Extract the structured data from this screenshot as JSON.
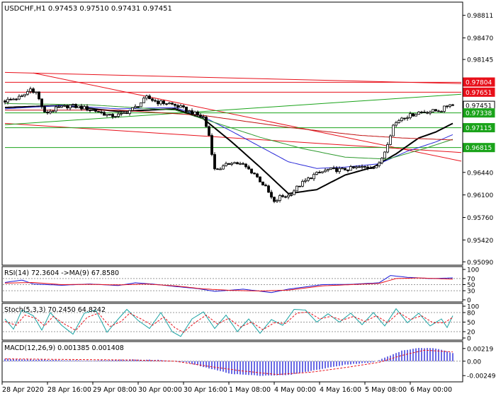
{
  "chart_data": [
    {
      "type": "candlestick",
      "panel": "main",
      "title": "USDCHF,H1  0.97453 0.97510 0.97431 0.97451",
      "symbol": "USDCHF",
      "timeframe": "H1",
      "ohlc_label": {
        "open": 0.97453,
        "high": 0.9751,
        "low": 0.97431,
        "close": 0.97451
      },
      "ylim": [
        0.9505,
        0.99
      ],
      "y_ticks": [
        0.98811,
        0.9847,
        0.98145,
        0.97804,
        0.97651,
        0.97451,
        0.97338,
        0.97115,
        0.96815,
        0.9644,
        0.961,
        0.9576,
        0.9542,
        0.9509
      ],
      "highlighted_levels": [
        {
          "value": 0.97804,
          "label": "0.97804",
          "color": "#e8101a"
        },
        {
          "value": 0.97651,
          "label": "0.97651",
          "color": "#e8101a"
        },
        {
          "value": 0.97451,
          "label": "0.97451",
          "color": "#ffffff"
        },
        {
          "value": 0.97338,
          "label": "0.97338",
          "color": "#1aa31a"
        },
        {
          "value": 0.97115,
          "label": "0.97115",
          "color": "#1aa31a"
        },
        {
          "value": 0.96815,
          "label": "0.96815",
          "color": "#1aa31a"
        }
      ],
      "x_labels": [
        "28 Apr 2020",
        "28 Apr 16:00",
        "29 Apr 08:00",
        "30 Apr 00:00",
        "30 Apr 16:00",
        "1 May 08:00",
        "4 May 00:00",
        "4 May 16:00",
        "5 May 08:00",
        "6 May 00:00"
      ],
      "close_anchors": [
        [
          0,
          0.9752
        ],
        [
          6,
          0.9758
        ],
        [
          9,
          0.977
        ],
        [
          11,
          0.9765
        ],
        [
          14,
          0.9733
        ],
        [
          18,
          0.974
        ],
        [
          23,
          0.9745
        ],
        [
          28,
          0.9741
        ],
        [
          33,
          0.9736
        ],
        [
          37,
          0.9729
        ],
        [
          41,
          0.9731
        ],
        [
          46,
          0.9742
        ],
        [
          50,
          0.9757
        ],
        [
          54,
          0.975
        ],
        [
          58,
          0.9748
        ],
        [
          62,
          0.9742
        ],
        [
          66,
          0.9734
        ],
        [
          70,
          0.9727
        ],
        [
          72,
          0.97
        ],
        [
          74,
          0.9648
        ],
        [
          77,
          0.9652
        ],
        [
          80,
          0.966
        ],
        [
          84,
          0.9655
        ],
        [
          88,
          0.9642
        ],
        [
          92,
          0.9621
        ],
        [
          95,
          0.9598
        ],
        [
          97,
          0.9607
        ],
        [
          100,
          0.9609
        ],
        [
          104,
          0.9625
        ],
        [
          109,
          0.964
        ],
        [
          114,
          0.9648
        ],
        [
          119,
          0.9648
        ],
        [
          124,
          0.9651
        ],
        [
          129,
          0.9652
        ],
        [
          132,
          0.9656
        ],
        [
          134,
          0.9676
        ],
        [
          137,
          0.9715
        ],
        [
          140,
          0.9727
        ],
        [
          143,
          0.973
        ],
        [
          146,
          0.9735
        ],
        [
          150,
          0.9736
        ],
        [
          154,
          0.9738
        ],
        [
          157,
          0.9748
        ],
        [
          158,
          0.9745
        ]
      ],
      "trendlines": [
        {
          "color": "#e8101a",
          "from": [
            0,
            0.978
          ],
          "to": [
            158,
            0.978
          ]
        },
        {
          "color": "#e8101a",
          "from": [
            0,
            0.97651
          ],
          "to": [
            158,
            0.97651
          ]
        },
        {
          "color": "#e8101a",
          "from": [
            0,
            0.9795
          ],
          "to": [
            158,
            0.9778
          ]
        },
        {
          "color": "#e8101a",
          "from": [
            10,
            0.9794
          ],
          "to": [
            158,
            0.9661
          ]
        },
        {
          "color": "#e8101a",
          "from": [
            0,
            0.9718
          ],
          "to": [
            158,
            0.9674
          ]
        },
        {
          "color": "#1aa31a",
          "from": [
            0,
            0.97338
          ],
          "to": [
            158,
            0.97338
          ]
        },
        {
          "color": "#1aa31a",
          "from": [
            0,
            0.97115
          ],
          "to": [
            158,
            0.97115
          ]
        },
        {
          "color": "#1aa31a",
          "from": [
            0,
            0.96815
          ],
          "to": [
            158,
            0.96815
          ]
        },
        {
          "color": "#1aa31a",
          "from": [
            0,
            0.9716
          ],
          "to": [
            158,
            0.9762
          ]
        }
      ],
      "moving_averages": [
        {
          "color": "#000000",
          "anchors": [
            [
              0,
              0.9742
            ],
            [
              20,
              0.9745
            ],
            [
              40,
              0.9736
            ],
            [
              60,
              0.974
            ],
            [
              70,
              0.9725
            ],
            [
              80,
              0.969
            ],
            [
              90,
              0.9652
            ],
            [
              100,
              0.9612
            ],
            [
              110,
              0.9618
            ],
            [
              120,
              0.964
            ],
            [
              130,
              0.9652
            ],
            [
              138,
              0.9672
            ],
            [
              146,
              0.9696
            ],
            [
              152,
              0.9705
            ],
            [
              158,
              0.9718
            ]
          ]
        },
        {
          "color": "#2b2bd8",
          "anchors": [
            [
              0,
              0.974
            ],
            [
              20,
              0.9745
            ],
            [
              40,
              0.974
            ],
            [
              60,
              0.9742
            ],
            [
              70,
              0.9728
            ],
            [
              80,
              0.9706
            ],
            [
              90,
              0.9683
            ],
            [
              100,
              0.966
            ],
            [
              110,
              0.965
            ],
            [
              120,
              0.9652
            ],
            [
              132,
              0.9657
            ],
            [
              142,
              0.9676
            ],
            [
              152,
              0.969
            ],
            [
              158,
              0.9701
            ]
          ]
        },
        {
          "color": "#2e9a2e",
          "anchors": [
            [
              0,
              0.9748
            ],
            [
              30,
              0.9746
            ],
            [
              60,
              0.9738
            ],
            [
              75,
              0.9718
            ],
            [
              90,
              0.9697
            ],
            [
              105,
              0.968
            ],
            [
              120,
              0.9667
            ],
            [
              135,
              0.9664
            ],
            [
              148,
              0.968
            ],
            [
              158,
              0.9694
            ]
          ]
        },
        {
          "color": "#c01010",
          "anchors": [
            [
              0,
              0.9738
            ],
            [
              40,
              0.9738
            ],
            [
              70,
              0.973
            ],
            [
              100,
              0.9712
            ],
            [
              125,
              0.97
            ],
            [
              140,
              0.9696
            ],
            [
              158,
              0.9693
            ]
          ]
        }
      ]
    },
    {
      "type": "line",
      "panel": "rsi",
      "label": "RSI(14) 72.3604  ->MA(9) 67.8580",
      "ylim": [
        0,
        100
      ],
      "y_ticks": [
        100,
        70,
        50,
        30,
        0
      ],
      "series": [
        {
          "color": "#1a1ad8",
          "anchors": [
            [
              0,
              57
            ],
            [
              6,
              65
            ],
            [
              10,
              52
            ],
            [
              20,
              48
            ],
            [
              30,
              52
            ],
            [
              40,
              47
            ],
            [
              46,
              56
            ],
            [
              52,
              52
            ],
            [
              60,
              44
            ],
            [
              68,
              37
            ],
            [
              74,
              28
            ],
            [
              84,
              35
            ],
            [
              94,
              24
            ],
            [
              100,
              35
            ],
            [
              112,
              50
            ],
            [
              122,
              51
            ],
            [
              132,
              56
            ],
            [
              136,
              80
            ],
            [
              142,
              74
            ],
            [
              150,
              70
            ],
            [
              158,
              72
            ]
          ]
        },
        {
          "color": "#e8101a",
          "anchors": [
            [
              0,
              55
            ],
            [
              10,
              57
            ],
            [
              20,
              50
            ],
            [
              30,
              51
            ],
            [
              40,
              49
            ],
            [
              50,
              52
            ],
            [
              60,
              46
            ],
            [
              70,
              36
            ],
            [
              80,
              31
            ],
            [
              90,
              29
            ],
            [
              100,
              32
            ],
            [
              112,
              46
            ],
            [
              122,
              50
            ],
            [
              132,
              54
            ],
            [
              138,
              70
            ],
            [
              146,
              72
            ],
            [
              158,
              68
            ]
          ]
        }
      ]
    },
    {
      "type": "line",
      "panel": "stoch",
      "label": "Stoch(5,3,3) 70.2450 64.8242",
      "ylim": [
        0,
        100
      ],
      "y_ticks": [
        100,
        80,
        50,
        20,
        0
      ],
      "series": [
        {
          "color": "#1aa3a3",
          "anchors": [
            [
              0,
              60
            ],
            [
              3,
              28
            ],
            [
              6,
              88
            ],
            [
              10,
              70
            ],
            [
              13,
              25
            ],
            [
              16,
              80
            ],
            [
              20,
              40
            ],
            [
              24,
              12
            ],
            [
              28,
              78
            ],
            [
              32,
              88
            ],
            [
              36,
              18
            ],
            [
              40,
              60
            ],
            [
              43,
              90
            ],
            [
              47,
              55
            ],
            [
              51,
              30
            ],
            [
              55,
              80
            ],
            [
              59,
              20
            ],
            [
              62,
              5
            ],
            [
              66,
              60
            ],
            [
              70,
              82
            ],
            [
              74,
              30
            ],
            [
              78,
              72
            ],
            [
              82,
              20
            ],
            [
              86,
              60
            ],
            [
              90,
              15
            ],
            [
              94,
              58
            ],
            [
              98,
              40
            ],
            [
              102,
              90
            ],
            [
              106,
              88
            ],
            [
              110,
              50
            ],
            [
              114,
              76
            ],
            [
              118,
              50
            ],
            [
              122,
              78
            ],
            [
              126,
              42
            ],
            [
              130,
              80
            ],
            [
              134,
              38
            ],
            [
              138,
              92
            ],
            [
              142,
              48
            ],
            [
              146,
              78
            ],
            [
              150,
              38
            ],
            [
              154,
              60
            ],
            [
              156,
              33
            ],
            [
              158,
              70
            ]
          ]
        },
        {
          "color": "#e8101a",
          "anchors": [
            [
              0,
              52
            ],
            [
              4,
              40
            ],
            [
              7,
              72
            ],
            [
              11,
              62
            ],
            [
              14,
              38
            ],
            [
              17,
              68
            ],
            [
              21,
              44
            ],
            [
              25,
              24
            ],
            [
              29,
              65
            ],
            [
              33,
              78
            ],
            [
              37,
              36
            ],
            [
              41,
              52
            ],
            [
              44,
              78
            ],
            [
              48,
              60
            ],
            [
              52,
              40
            ],
            [
              56,
              66
            ],
            [
              60,
              32
            ],
            [
              63,
              18
            ],
            [
              67,
              48
            ],
            [
              71,
              72
            ],
            [
              75,
              44
            ],
            [
              79,
              62
            ],
            [
              83,
              34
            ],
            [
              87,
              50
            ],
            [
              91,
              26
            ],
            [
              95,
              48
            ],
            [
              99,
              46
            ],
            [
              103,
              78
            ],
            [
              107,
              82
            ],
            [
              111,
              60
            ],
            [
              115,
              68
            ],
            [
              119,
              56
            ],
            [
              123,
              68
            ],
            [
              127,
              52
            ],
            [
              131,
              70
            ],
            [
              135,
              48
            ],
            [
              139,
              80
            ],
            [
              143,
              58
            ],
            [
              147,
              70
            ],
            [
              151,
              48
            ],
            [
              155,
              48
            ],
            [
              158,
              65
            ]
          ]
        }
      ]
    },
    {
      "type": "bar",
      "panel": "macd",
      "label": "MACD(12,26,9) 0.001385 0.001408",
      "ylim": [
        -0.0032,
        0.0029
      ],
      "y_ticks": [
        0.00219,
        0.0,
        -0.00249
      ],
      "histogram_anchors": [
        [
          0,
          0.0004
        ],
        [
          10,
          0.0003
        ],
        [
          20,
          0.0002
        ],
        [
          30,
          0.0001
        ],
        [
          45,
          0.0003
        ],
        [
          55,
          0.0002
        ],
        [
          64,
          -0.0002
        ],
        [
          70,
          -0.001
        ],
        [
          80,
          -0.0022
        ],
        [
          90,
          -0.0025
        ],
        [
          100,
          -0.0024
        ],
        [
          110,
          -0.0015
        ],
        [
          120,
          -0.0006
        ],
        [
          130,
          -0.0002
        ],
        [
          134,
          0.0006
        ],
        [
          140,
          0.0018
        ],
        [
          146,
          0.0023
        ],
        [
          152,
          0.0022
        ],
        [
          158,
          0.0014
        ]
      ],
      "signal_anchors": [
        [
          0,
          0.0004
        ],
        [
          20,
          0.0003
        ],
        [
          45,
          0.0002
        ],
        [
          60,
          0.0
        ],
        [
          72,
          -0.0009
        ],
        [
          84,
          -0.0017
        ],
        [
          96,
          -0.0023
        ],
        [
          108,
          -0.0019
        ],
        [
          120,
          -0.0011
        ],
        [
          132,
          -0.0002
        ],
        [
          140,
          0.001
        ],
        [
          148,
          0.0019
        ],
        [
          158,
          0.0016
        ]
      ]
    }
  ]
}
